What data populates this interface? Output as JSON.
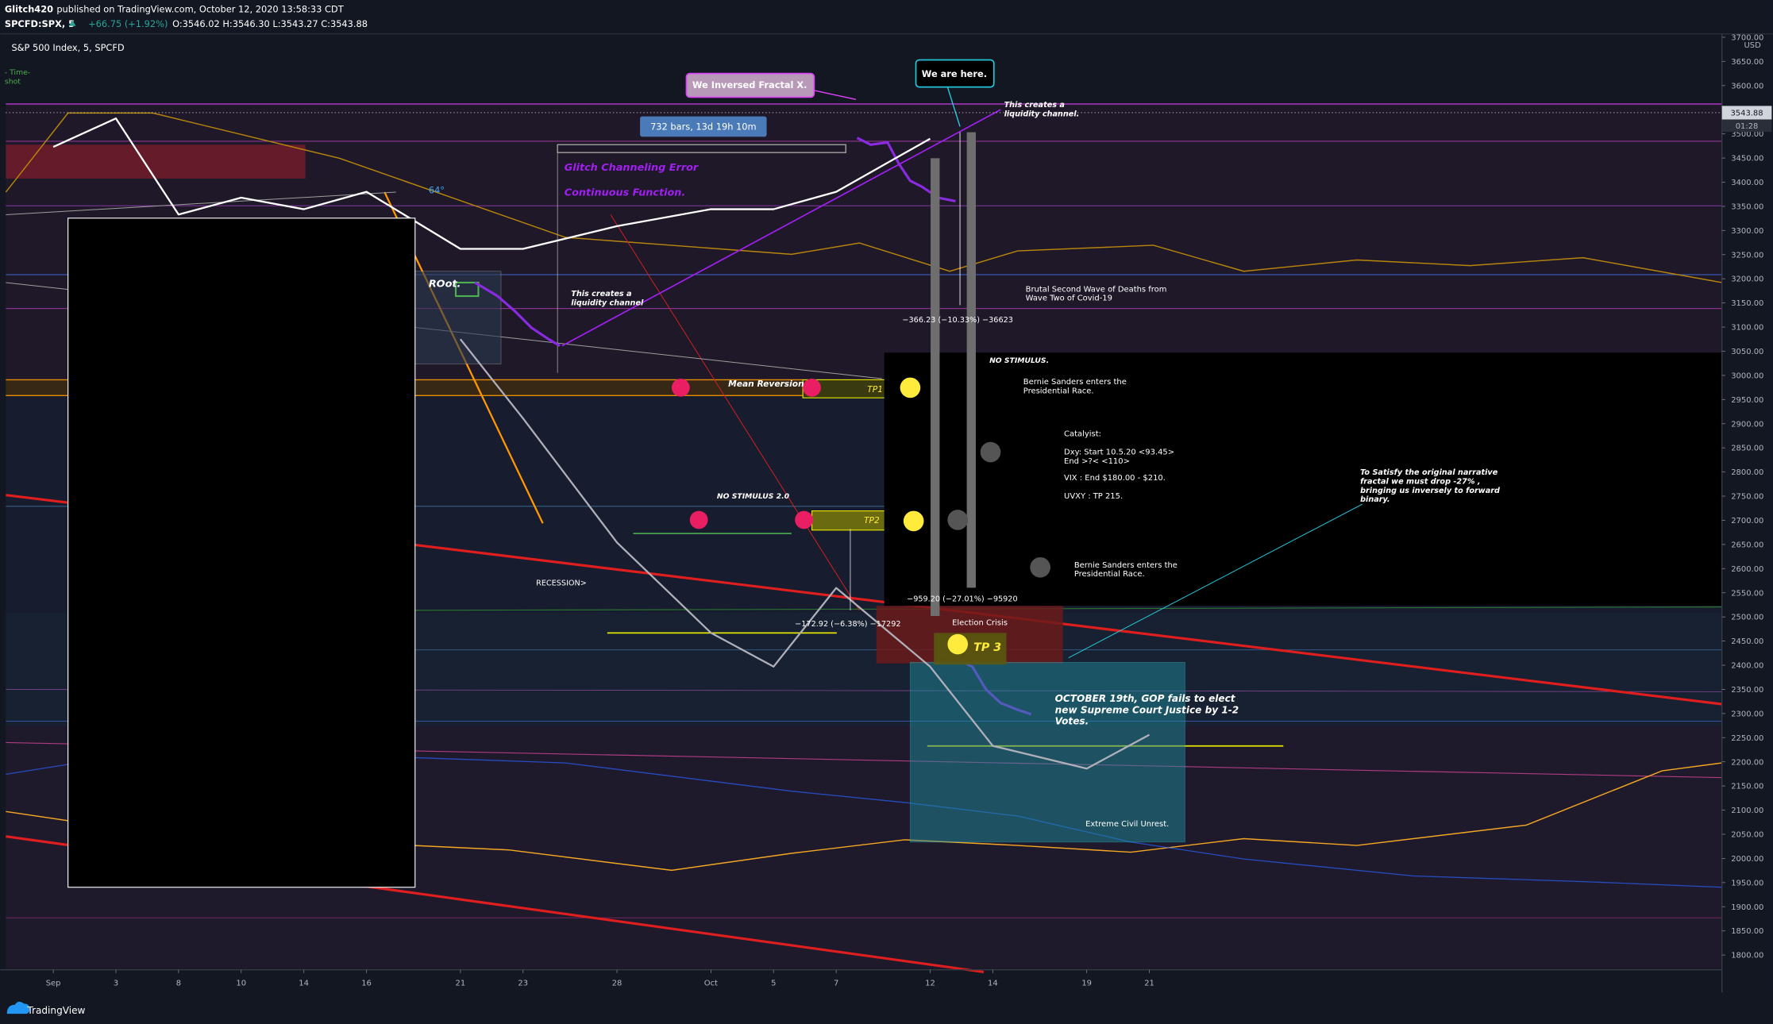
{
  "header": {
    "publisher": "Glitch420",
    "published": "published on TradingView.com, October 12, 2020 13:58:33 CDT",
    "symbol": "SPCFD:SPX, 5",
    "change": "+66.75 (+1.92%)",
    "ohlc": "O:3546.02 H:3546.30 L:3543.27 C:3543.88"
  },
  "chart_data": {
    "type": "line",
    "title": "S&P 500 Index, 5, SPCFD",
    "y_unit": "USD",
    "categories": [
      "Sep",
      "3",
      "8",
      "10",
      "14",
      "16",
      "21",
      "23",
      "28",
      "Oct",
      "5",
      "7",
      "12",
      "14",
      "19",
      "21"
    ],
    "series": [
      {
        "color": "#ffffff",
        "values": [
          3473,
          3532,
          3333,
          3368,
          3344,
          3380,
          3262,
          3262,
          3309,
          3344,
          3344,
          3380,
          3490,
          null,
          null,
          null
        ]
      },
      {
        "color": "#b0b0ba",
        "values": [
          null,
          null,
          null,
          null,
          null,
          null,
          3075,
          2911,
          2654,
          2467,
          2397,
          2560,
          2397,
          2233,
          2186,
          2256
        ]
      }
    ],
    "ylim": [
      1770,
      3710
    ],
    "yticks": [
      {
        "value": 1800,
        "label": "1800.00"
      },
      {
        "value": 1850,
        "label": "1850.00"
      },
      {
        "value": 1900,
        "label": "1900.00"
      },
      {
        "value": 1950,
        "label": "1950.00"
      },
      {
        "value": 2000,
        "label": "2000.00"
      },
      {
        "value": 2050,
        "label": "2050.00"
      },
      {
        "value": 2100,
        "label": "2100.00"
      },
      {
        "value": 2150,
        "label": "2150.00"
      },
      {
        "value": 2200,
        "label": "2200.00"
      },
      {
        "value": 2250,
        "label": "2250.00"
      },
      {
        "value": 2300,
        "label": "2300.00"
      },
      {
        "value": 2350,
        "label": "2350.00"
      },
      {
        "value": 2400,
        "label": "2400.00"
      },
      {
        "value": 2450,
        "label": "2450.00"
      },
      {
        "value": 2500,
        "label": "2500.00"
      },
      {
        "value": 2550,
        "label": "2550.00"
      },
      {
        "value": 2600,
        "label": "2600.00"
      },
      {
        "value": 2650,
        "label": "2650.00"
      },
      {
        "value": 2700,
        "label": "2700.00"
      },
      {
        "value": 2750,
        "label": "2750.00"
      },
      {
        "value": 2800,
        "label": "2800.00"
      },
      {
        "value": 2850,
        "label": "2850.00"
      },
      {
        "value": 2900,
        "label": "2900.00"
      },
      {
        "value": 2950,
        "label": "2950.00"
      },
      {
        "value": 3000,
        "label": "3000.00"
      },
      {
        "value": 3050,
        "label": "3050.00"
      },
      {
        "value": 3100,
        "label": "3100.00"
      },
      {
        "value": 3150,
        "label": "3150.00"
      },
      {
        "value": 3200,
        "label": "3200.00"
      },
      {
        "value": 3250,
        "label": "3250.00"
      },
      {
        "value": 3300,
        "label": "3300.00"
      },
      {
        "value": 3350,
        "label": "3350.00"
      },
      {
        "value": 3400,
        "label": "3400.00"
      },
      {
        "value": 3450,
        "label": "3450.00"
      },
      {
        "value": 3500,
        "label": "3500.00"
      },
      {
        "value": 3550,
        "label": "3550.00"
      },
      {
        "value": 3600,
        "label": "3600.00"
      },
      {
        "value": 3650,
        "label": "3650.00"
      },
      {
        "value": 3700,
        "label": "3700.00"
      }
    ],
    "last_price": 3543.88,
    "last_time": "01:28",
    "annotations": {
      "timeshot": [
        "- Time-",
        "shot"
      ],
      "inversed": "We Inversed Fractal X.",
      "here": "We are here.",
      "channel_top": [
        "This creates a",
        "liquidity channel."
      ],
      "bars": "732 bars, 13d 19h 10m",
      "glitch": "Glitch Channeling Error",
      "continuous": "Continuous Function.",
      "angle": "64°",
      "root": "ROot.",
      "channel_low": [
        "This creates a",
        "liquidity channel"
      ],
      "wave": [
        "Brutal Second Wave of Deaths from",
        "Wave Two of Covid-19"
      ],
      "measure1": "−366.23 (−10.33%) −36623",
      "no_stimulus": "NO STIMULUS.",
      "bernie1": [
        "Bernie Sanders enters the",
        "Presidential Race."
      ],
      "mean_reversion": "Mean Reversion",
      "tp1": "TP1",
      "catalyst": "Catalyist:",
      "dxy": [
        "Dxy: Start 10.5.20 <93.45>",
        "End >?< <110>"
      ],
      "vix": "VIX : End $180.00 - $210.",
      "uvxy": "UVXY : TP 215.",
      "narrative": [
        "To Satisfy the original narrative",
        "fractal we must drop -27% ,",
        "bringing us inversely to forward",
        "binary."
      ],
      "no_stimulus2": "NO STIMULUS 2.0",
      "tp2": "TP2",
      "bernie2": [
        "Bernie Sanders enters the",
        "Presidential Race."
      ],
      "recession": "RECESSION>",
      "measure2": "−959.20 (−27.01%) −95920",
      "measure3": "−172.92 (−6.38%) −17292",
      "election": "Election Crisis",
      "tp3": "TP 3",
      "october": [
        "OCTOBER 19th, GOP fails to elect",
        "new Supreme Court Justice by 1-2",
        "Votes."
      ],
      "unrest": "Extreme Civil Unrest."
    },
    "brand": "TradingView"
  }
}
